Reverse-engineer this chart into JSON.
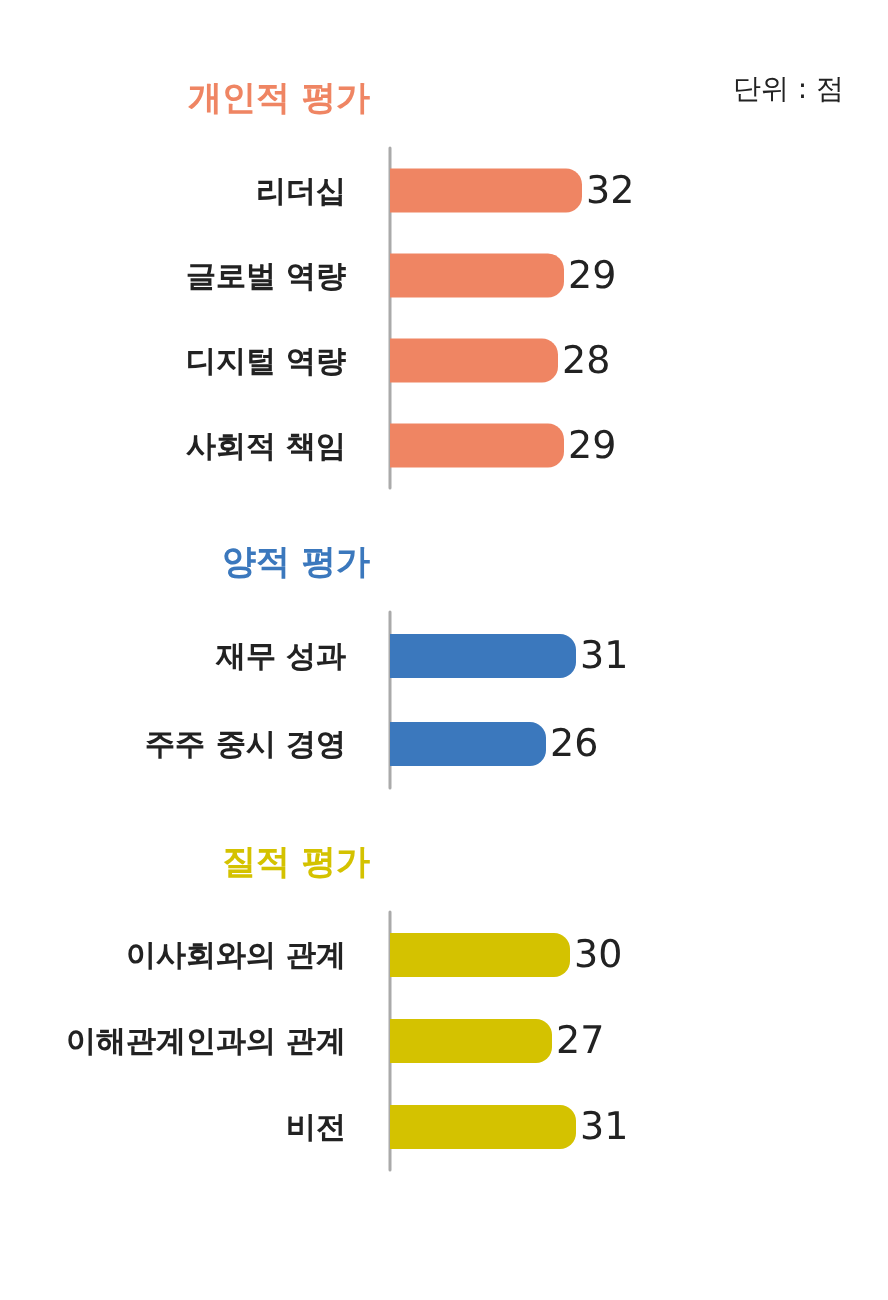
{
  "chart_data": [
    {
      "type": "bar",
      "orientation": "horizontal",
      "title": "개인적 평가",
      "categories": [
        "리더십",
        "글로벌 역량",
        "디지털 역량",
        "사회적 책임"
      ],
      "values": [
        32,
        29,
        28,
        29
      ],
      "color": "#ef8563",
      "data_labels": true,
      "annotations": [
        "단위 : 점"
      ]
    },
    {
      "type": "bar",
      "orientation": "horizontal",
      "title": "양적 평가",
      "categories": [
        "재무 성과",
        "주주 중시 경영"
      ],
      "values": [
        31,
        26
      ],
      "color": "#3b78bd",
      "data_labels": true
    },
    {
      "type": "bar",
      "orientation": "horizontal",
      "title": "질적 평가",
      "categories": [
        "이사회와의 관계",
        "이해관계인과의 관계",
        "비전"
      ],
      "values": [
        30,
        27,
        31
      ],
      "color": "#d4c200",
      "data_labels": true
    }
  ]
}
